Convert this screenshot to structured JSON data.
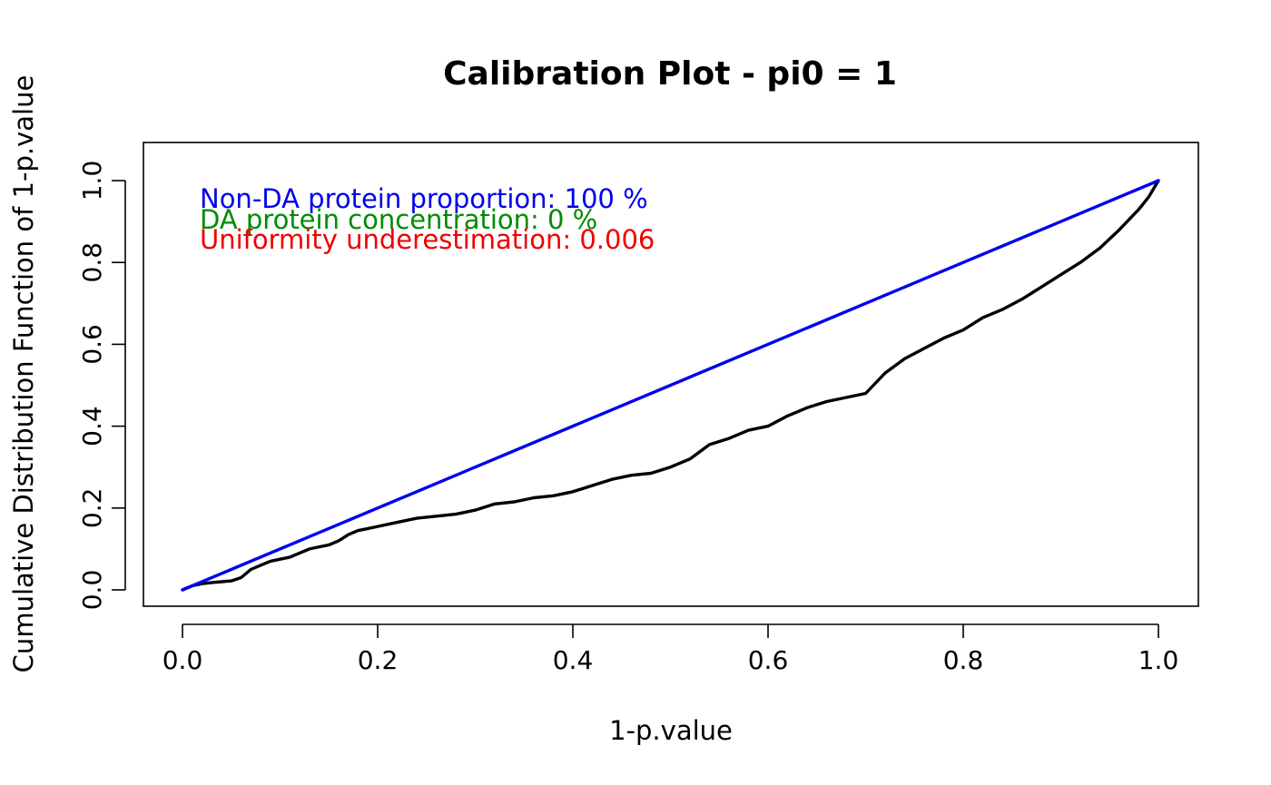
{
  "chart_data": {
    "type": "line",
    "title": "Calibration Plot - pi0 = 1",
    "xlabel": "1-p.value",
    "ylabel": "Cumulative Distribution Function of 1-p.value",
    "xlim": [
      0.0,
      1.0
    ],
    "ylim": [
      0.0,
      1.0
    ],
    "xticks": [
      "0.0",
      "0.2",
      "0.4",
      "0.6",
      "0.8",
      "1.0"
    ],
    "yticks": [
      "0.0",
      "0.2",
      "0.4",
      "0.6",
      "0.8",
      "1.0"
    ],
    "grid": false,
    "annotations": [
      {
        "text": "Non-DA protein proportion:  100 %",
        "color": "#0000ee"
      },
      {
        "text": "DA protein concentration:  0 %",
        "color": "#008b00"
      },
      {
        "text": "Uniformity underestimation:  0.006",
        "color": "#ee0000"
      }
    ],
    "series": [
      {
        "color": "#000000",
        "x": [
          0.0,
          0.01,
          0.02,
          0.03,
          0.04,
          0.05,
          0.06,
          0.07,
          0.08,
          0.09,
          0.1,
          0.11,
          0.12,
          0.13,
          0.14,
          0.15,
          0.16,
          0.17,
          0.18,
          0.19,
          0.2,
          0.22,
          0.24,
          0.26,
          0.28,
          0.3,
          0.32,
          0.34,
          0.36,
          0.38,
          0.4,
          0.42,
          0.44,
          0.46,
          0.48,
          0.5,
          0.52,
          0.54,
          0.56,
          0.58,
          0.6,
          0.62,
          0.64,
          0.66,
          0.68,
          0.7,
          0.72,
          0.74,
          0.76,
          0.78,
          0.8,
          0.82,
          0.84,
          0.86,
          0.88,
          0.9,
          0.92,
          0.94,
          0.96,
          0.98,
          0.99,
          1.0
        ],
        "y": [
          0.0,
          0.01,
          0.015,
          0.018,
          0.02,
          0.022,
          0.03,
          0.05,
          0.06,
          0.07,
          0.075,
          0.08,
          0.09,
          0.1,
          0.105,
          0.11,
          0.12,
          0.135,
          0.145,
          0.15,
          0.155,
          0.165,
          0.175,
          0.18,
          0.185,
          0.195,
          0.21,
          0.215,
          0.225,
          0.23,
          0.24,
          0.255,
          0.27,
          0.28,
          0.285,
          0.3,
          0.32,
          0.355,
          0.37,
          0.39,
          0.4,
          0.425,
          0.445,
          0.46,
          0.47,
          0.48,
          0.53,
          0.565,
          0.59,
          0.615,
          0.635,
          0.665,
          0.685,
          0.71,
          0.74,
          0.77,
          0.8,
          0.835,
          0.88,
          0.93,
          0.96,
          1.0
        ]
      },
      {
        "color": "#0000ee",
        "x": [
          0.0,
          1.0
        ],
        "y": [
          0.0,
          1.0
        ]
      }
    ]
  }
}
